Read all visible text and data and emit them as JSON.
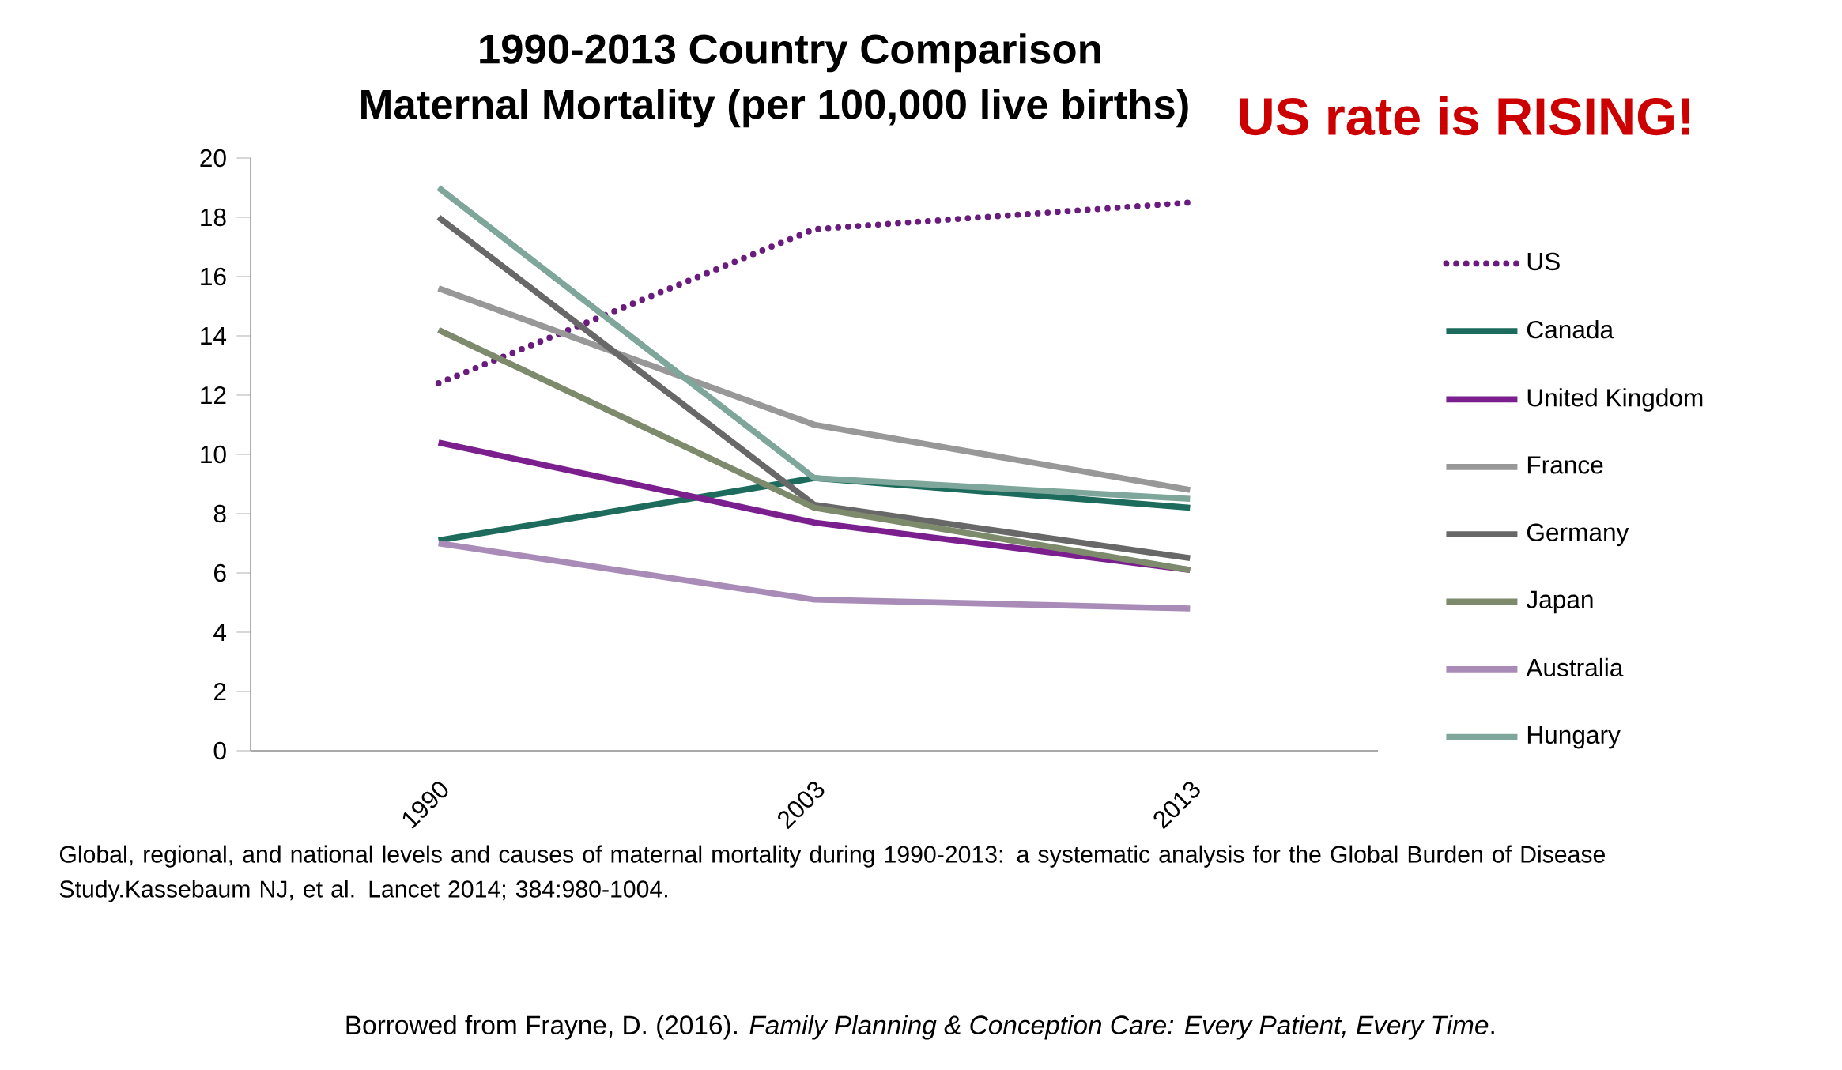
{
  "chart_data": {
    "type": "line",
    "title": "1990-2013  Country Comparison",
    "subtitle": "Maternal Mortality (per 100,000 live births)",
    "categories": [
      "1990",
      "2003",
      "2013"
    ],
    "series": [
      {
        "name": "US",
        "color": "#6a1b7e",
        "values": [
          12.4,
          17.6,
          18.5
        ],
        "line_style": "dotted"
      },
      {
        "name": "Canada",
        "color": "#1d6b5c",
        "values": [
          7.1,
          9.2,
          8.2
        ]
      },
      {
        "name": "United Kingdom",
        "color": "#7b1f8f",
        "values": [
          10.4,
          7.7,
          6.1
        ]
      },
      {
        "name": "France",
        "color": "#989898",
        "values": [
          15.6,
          11.0,
          8.8
        ]
      },
      {
        "name": "Germany",
        "color": "#686868",
        "values": [
          18.0,
          8.3,
          6.5
        ]
      },
      {
        "name": "Japan",
        "color": "#7d8a6c",
        "values": [
          14.2,
          8.2,
          6.1
        ]
      },
      {
        "name": "Australia",
        "color": "#a98bb8",
        "values": [
          7.0,
          5.1,
          4.8
        ]
      },
      {
        "name": "Hungary",
        "color": "#7fa69a",
        "values": [
          19.0,
          9.2,
          8.5
        ]
      }
    ],
    "ylim": [
      0,
      20
    ],
    "yticks": [
      0,
      2,
      4,
      6,
      8,
      10,
      12,
      14,
      16,
      18,
      20
    ],
    "line_style": "solid",
    "legend": "right",
    "grid": false,
    "annotations": [
      "US rate is RISING!",
      "Global, regional, and national levels and causes of maternal mortality during 1990-2013: a systematic analysis for the Global Burden of Disease Study.Kassebaum NJ, et al. Lancet 2014; 384:980-1004.",
      "Borrowed from Frayne, D. (2016). *Family Planning & Conception Care: Every Patient, Every Time*."
    ]
  }
}
